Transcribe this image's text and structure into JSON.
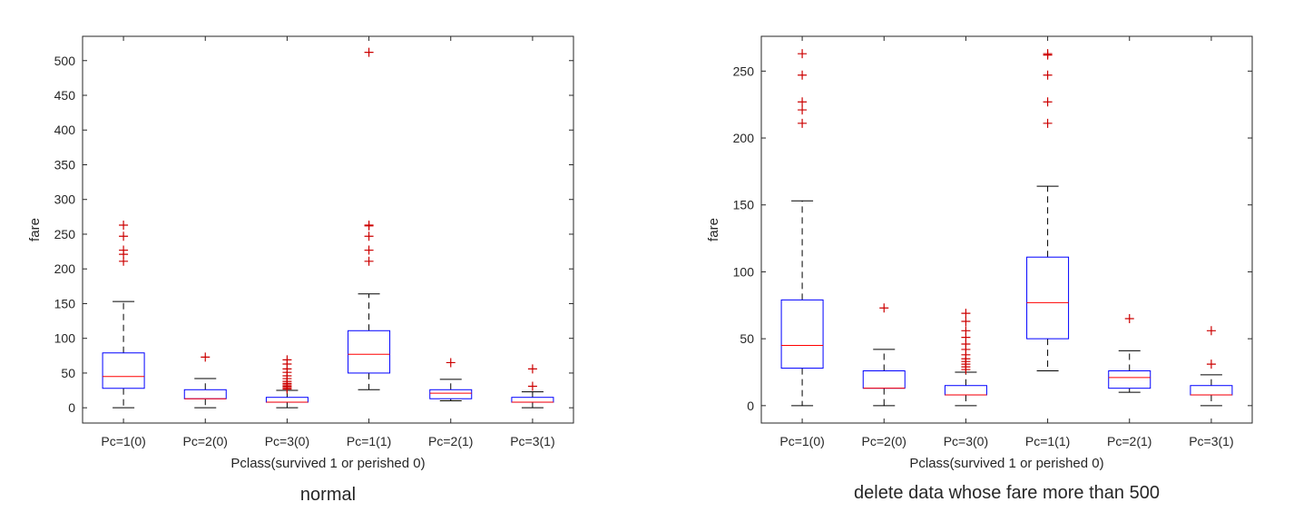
{
  "chart_data": [
    {
      "type": "box",
      "title": "normal",
      "xlabel": "Pclass(survived 1 or perished 0)",
      "ylabel": "fare",
      "ylim": [
        -22,
        535
      ],
      "yticks": [
        0,
        50,
        100,
        150,
        200,
        250,
        300,
        350,
        400,
        450,
        500
      ],
      "categories": [
        "Pc=1(0)",
        "Pc=2(0)",
        "Pc=3(0)",
        "Pc=1(1)",
        "Pc=2(1)",
        "Pc=3(1)"
      ],
      "boxes": [
        {
          "whisker_low": 0,
          "q1": 28,
          "median": 45,
          "q3": 79,
          "whisker_high": 153,
          "outliers": [
            211,
            221,
            227,
            247,
            263
          ]
        },
        {
          "whisker_low": 0,
          "q1": 13,
          "median": 13,
          "q3": 26,
          "whisker_high": 42,
          "outliers": [
            73
          ]
        },
        {
          "whisker_low": 0,
          "q1": 8,
          "median": 8,
          "q3": 15,
          "whisker_high": 25,
          "outliers": [
            27,
            29,
            31,
            33,
            35,
            38,
            42,
            46,
            51,
            56,
            63,
            69
          ]
        },
        {
          "whisker_low": 26,
          "q1": 50,
          "median": 77,
          "q3": 111,
          "whisker_high": 164,
          "outliers": [
            211,
            227,
            247,
            262,
            263,
            512
          ]
        },
        {
          "whisker_low": 10,
          "q1": 13,
          "median": 21,
          "q3": 26,
          "whisker_high": 41,
          "outliers": [
            65
          ]
        },
        {
          "whisker_low": 0,
          "q1": 8,
          "median": 8,
          "q3": 15,
          "whisker_high": 23,
          "outliers": [
            31,
            56
          ]
        }
      ]
    },
    {
      "type": "box",
      "title": "delete data whose fare more than 500",
      "xlabel": "Pclass(survived 1 or perished 0)",
      "ylabel": "fare",
      "ylim": [
        -13,
        276
      ],
      "yticks": [
        0,
        50,
        100,
        150,
        200,
        250
      ],
      "categories": [
        "Pc=1(0)",
        "Pc=2(0)",
        "Pc=3(0)",
        "Pc=1(1)",
        "Pc=2(1)",
        "Pc=3(1)"
      ],
      "boxes": [
        {
          "whisker_low": 0,
          "q1": 28,
          "median": 45,
          "q3": 79,
          "whisker_high": 153,
          "outliers": [
            211,
            221,
            227,
            247,
            263
          ]
        },
        {
          "whisker_low": 0,
          "q1": 13,
          "median": 13,
          "q3": 26,
          "whisker_high": 42,
          "outliers": [
            73
          ]
        },
        {
          "whisker_low": 0,
          "q1": 8,
          "median": 8,
          "q3": 15,
          "whisker_high": 25,
          "outliers": [
            27,
            29,
            31,
            33,
            35,
            38,
            42,
            46,
            51,
            56,
            63,
            69
          ]
        },
        {
          "whisker_low": 26,
          "q1": 50,
          "median": 77,
          "q3": 111,
          "whisker_high": 164,
          "outliers": [
            211,
            227,
            247,
            262,
            263
          ]
        },
        {
          "whisker_low": 10,
          "q1": 13,
          "median": 21,
          "q3": 26,
          "whisker_high": 41,
          "outliers": [
            65
          ]
        },
        {
          "whisker_low": 0,
          "q1": 8,
          "median": 8,
          "q3": 15,
          "whisker_high": 23,
          "outliers": [
            31,
            56
          ]
        }
      ]
    }
  ],
  "colors": {
    "box": "#0000ff",
    "median": "#ff0000",
    "outlier": "#cc0000",
    "whisker": "#000000",
    "axis": "#262626"
  }
}
